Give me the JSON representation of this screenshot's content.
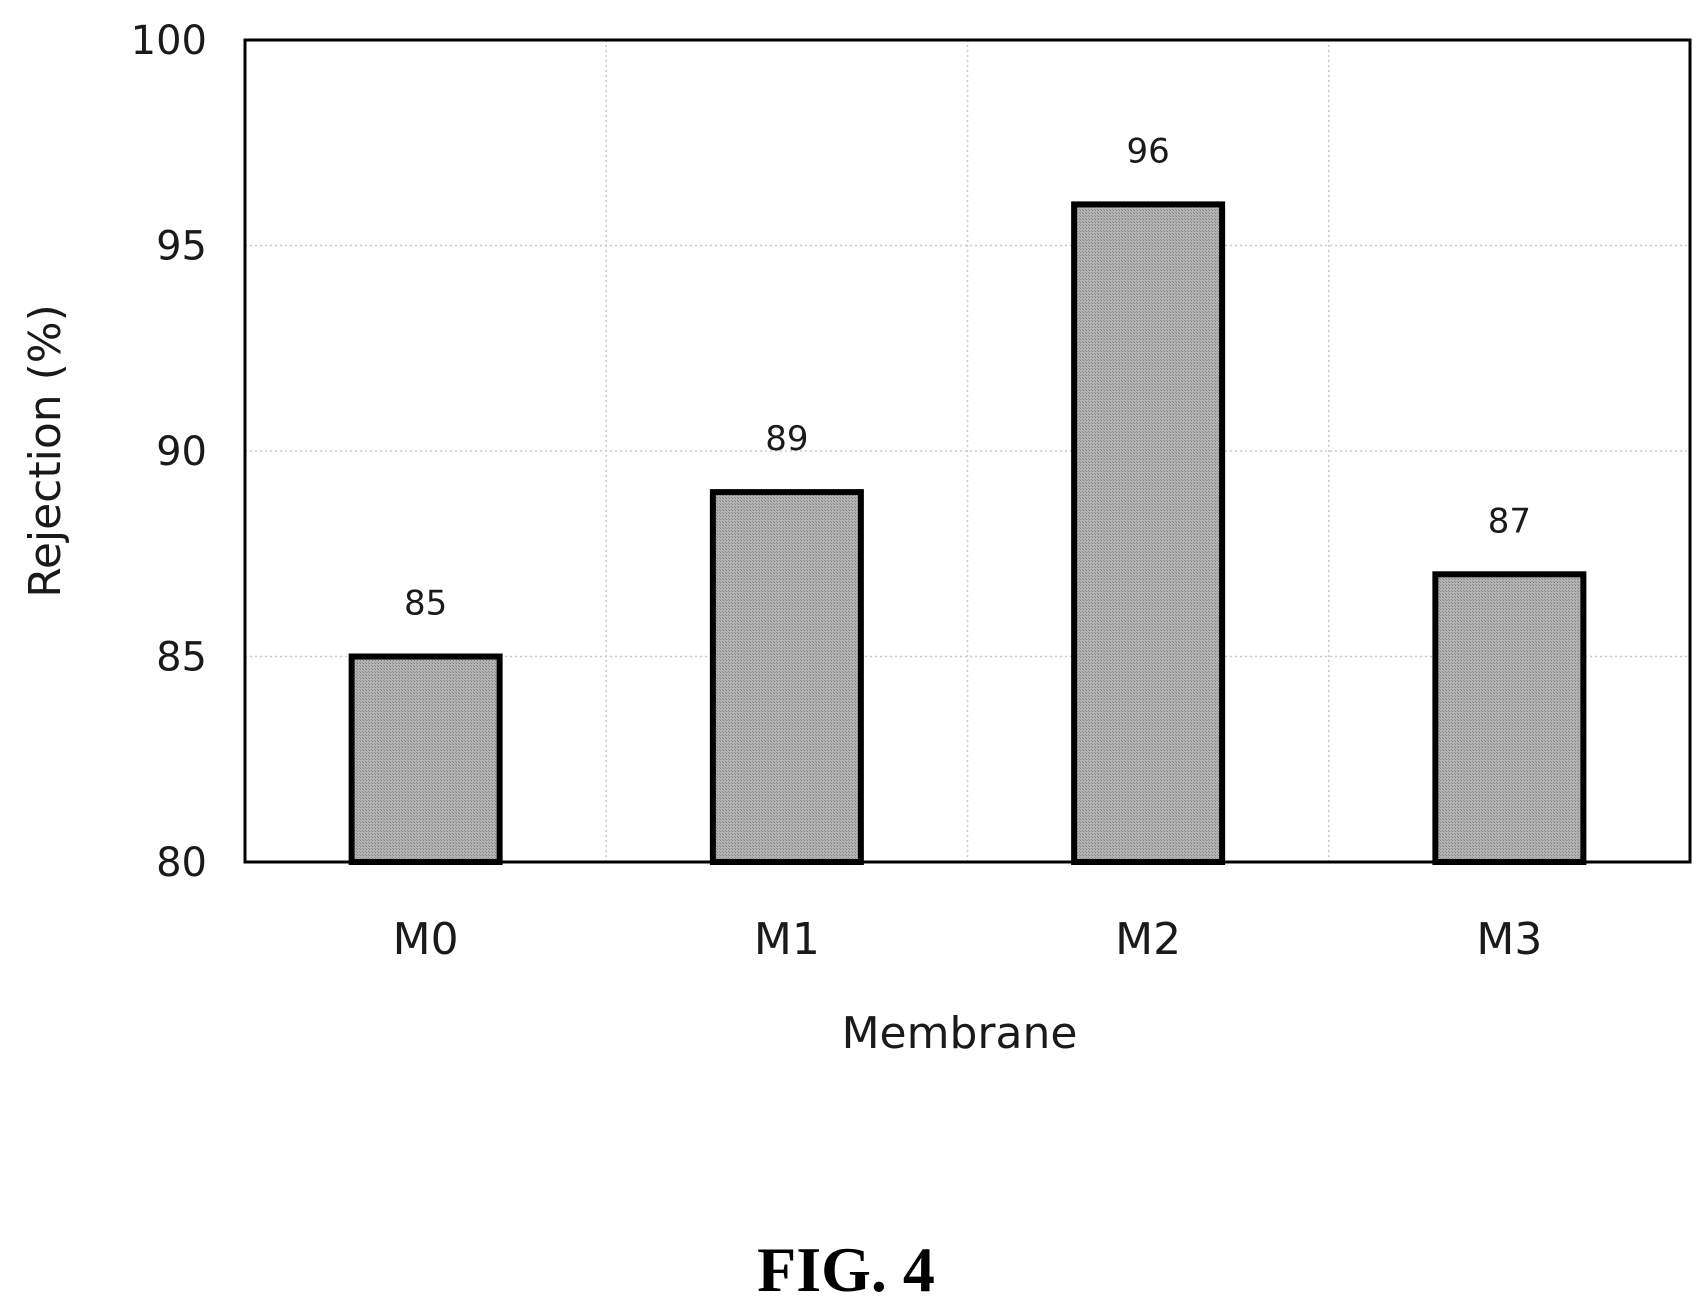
{
  "chart_data": {
    "type": "bar",
    "categories": [
      "M0",
      "M1",
      "M2",
      "M3"
    ],
    "values": [
      85,
      89,
      96,
      87
    ],
    "data_labels": [
      "85",
      "89",
      "96",
      "87"
    ],
    "title": "",
    "xlabel": "Membrane",
    "ylabel": "Rejection (%)",
    "ylim": [
      80,
      100
    ],
    "yticks": [
      80,
      85,
      90,
      95,
      100
    ],
    "grid": true,
    "bar_color": "#a6a6a6",
    "bar_edge_color": "#000000"
  },
  "figure_label": "FIG. 4"
}
